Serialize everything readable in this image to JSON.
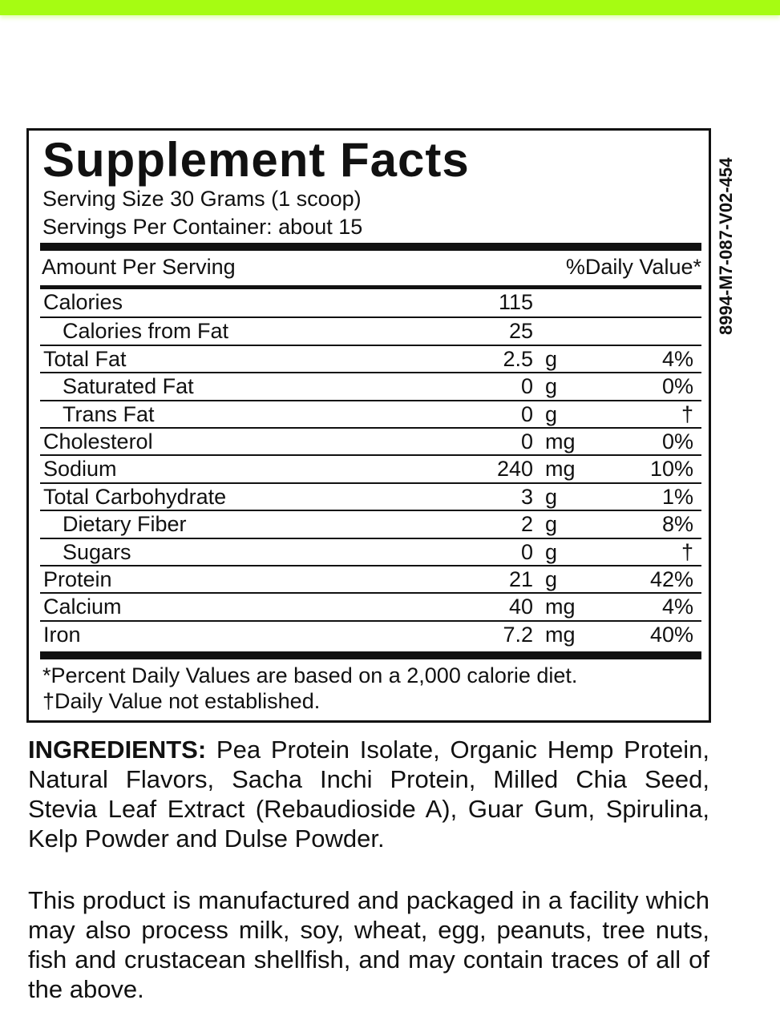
{
  "title": "Supplement Facts",
  "serving_size": "Serving Size 30 Grams (1 scoop)",
  "servings_per_container": "Servings Per Container: about 15",
  "amount_header": "Amount Per Serving",
  "dv_header": "%Daily Value*",
  "rows": [
    {
      "name": "Calories",
      "amount": "115",
      "unit": "",
      "dv": "",
      "indent": false
    },
    {
      "name": "Calories from Fat",
      "amount": "25",
      "unit": "",
      "dv": "",
      "indent": true
    },
    {
      "name": "Total Fat",
      "amount": "2.5",
      "unit": "g",
      "dv": "4%",
      "indent": false
    },
    {
      "name": "Saturated Fat",
      "amount": "0",
      "unit": "g",
      "dv": "0%",
      "indent": true
    },
    {
      "name": "Trans Fat",
      "amount": "0",
      "unit": "g",
      "dv": "†",
      "indent": true
    },
    {
      "name": "Cholesterol",
      "amount": "0",
      "unit": "mg",
      "dv": "0%",
      "indent": false
    },
    {
      "name": "Sodium",
      "amount": "240",
      "unit": "mg",
      "dv": "10%",
      "indent": false
    },
    {
      "name": "Total Carbohydrate",
      "amount": "3",
      "unit": "g",
      "dv": "1%",
      "indent": false
    },
    {
      "name": "Dietary Fiber",
      "amount": "2",
      "unit": "g",
      "dv": "8%",
      "indent": true
    },
    {
      "name": "Sugars",
      "amount": "0",
      "unit": "g",
      "dv": "†",
      "indent": true
    },
    {
      "name": "Protein",
      "amount": "21",
      "unit": "g",
      "dv": "42%",
      "indent": false
    },
    {
      "name": "Calcium",
      "amount": "40",
      "unit": "mg",
      "dv": "4%",
      "indent": false
    },
    {
      "name": "Iron",
      "amount": "7.2",
      "unit": "mg",
      "dv": "40%",
      "indent": false
    }
  ],
  "footnote1": "*Percent Daily Values are based on a 2,000 calorie diet.",
  "footnote2": "†Daily Value not established.",
  "code": "8994-M7-087-V02-454",
  "ingredients_label": "INGREDIENTS:",
  "ingredients": "Pea Protein Isolate, Organic Hemp Protein, Natural Flavors, Sacha Inchi Protein, Milled Chia Seed, Stevia Leaf Extract (Rebaudioside A), Guar Gum, Spirulina, Kelp Powder and Dulse Powder.",
  "allergen": "This product is manufactured and packaged in a facility which may also process milk, soy, wheat, egg, peanuts, tree nuts, fish and crustacean shellfish, and may contain traces of all of the above.",
  "colors": {
    "top_bar": "#a6fc12"
  }
}
